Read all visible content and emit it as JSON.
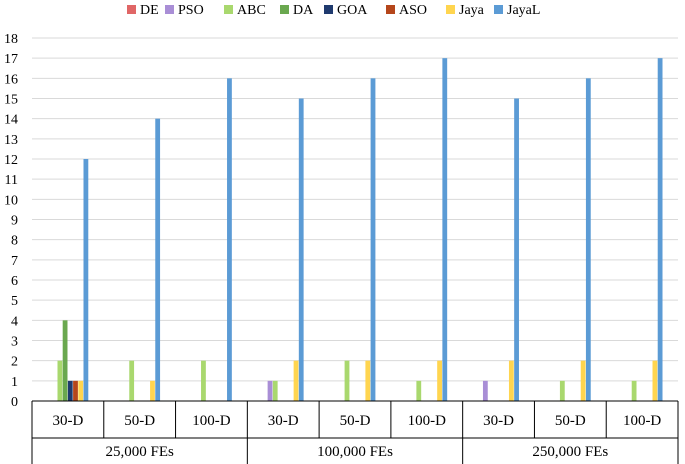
{
  "chart_data": {
    "type": "bar",
    "title": "",
    "xlabel": "",
    "ylabel": "",
    "ylim": [
      0,
      18
    ],
    "yticks": [
      0,
      1,
      2,
      3,
      4,
      5,
      6,
      7,
      8,
      9,
      10,
      11,
      12,
      13,
      14,
      15,
      16,
      17,
      18
    ],
    "grid": true,
    "legend_position": "top",
    "groups": [
      {
        "label": "25,000 FEs",
        "categories": [
          "30-D",
          "50-D",
          "100-D"
        ]
      },
      {
        "label": "100,000 FEs",
        "categories": [
          "30-D",
          "50-D",
          "100-D"
        ]
      },
      {
        "label": "250,000 FEs",
        "categories": [
          "30-D",
          "50-D",
          "100-D"
        ]
      }
    ],
    "categories": [
      "30-D",
      "50-D",
      "100-D",
      "30-D",
      "50-D",
      "100-D",
      "30-D",
      "50-D",
      "100-D"
    ],
    "series": [
      {
        "name": "DE",
        "color": "#e06666",
        "values": [
          0,
          0,
          0,
          0,
          0,
          0,
          0,
          0,
          0
        ]
      },
      {
        "name": "PSO",
        "color": "#a98ed6",
        "values": [
          0,
          0,
          0,
          1,
          0,
          0,
          1,
          0,
          0
        ]
      },
      {
        "name": "ABC",
        "color": "#a9d86e",
        "values": [
          2,
          2,
          2,
          1,
          2,
          1,
          0,
          1,
          1
        ]
      },
      {
        "name": "DA",
        "color": "#6aa84f",
        "values": [
          4,
          0,
          0,
          0,
          0,
          0,
          0,
          0,
          0
        ]
      },
      {
        "name": "GOA",
        "color": "#1f3a6e",
        "values": [
          1,
          0,
          0,
          0,
          0,
          0,
          0,
          0,
          0
        ]
      },
      {
        "name": "ASO",
        "color": "#b5461b",
        "values": [
          1,
          0,
          0,
          0,
          0,
          0,
          0,
          0,
          0
        ]
      },
      {
        "name": "Jaya",
        "color": "#ffd54f",
        "values": [
          1,
          1,
          0,
          2,
          2,
          2,
          2,
          2,
          2
        ]
      },
      {
        "name": "JayaL",
        "color": "#5b9bd5",
        "values": [
          12,
          14,
          16,
          15,
          16,
          17,
          15,
          16,
          17
        ]
      }
    ]
  }
}
